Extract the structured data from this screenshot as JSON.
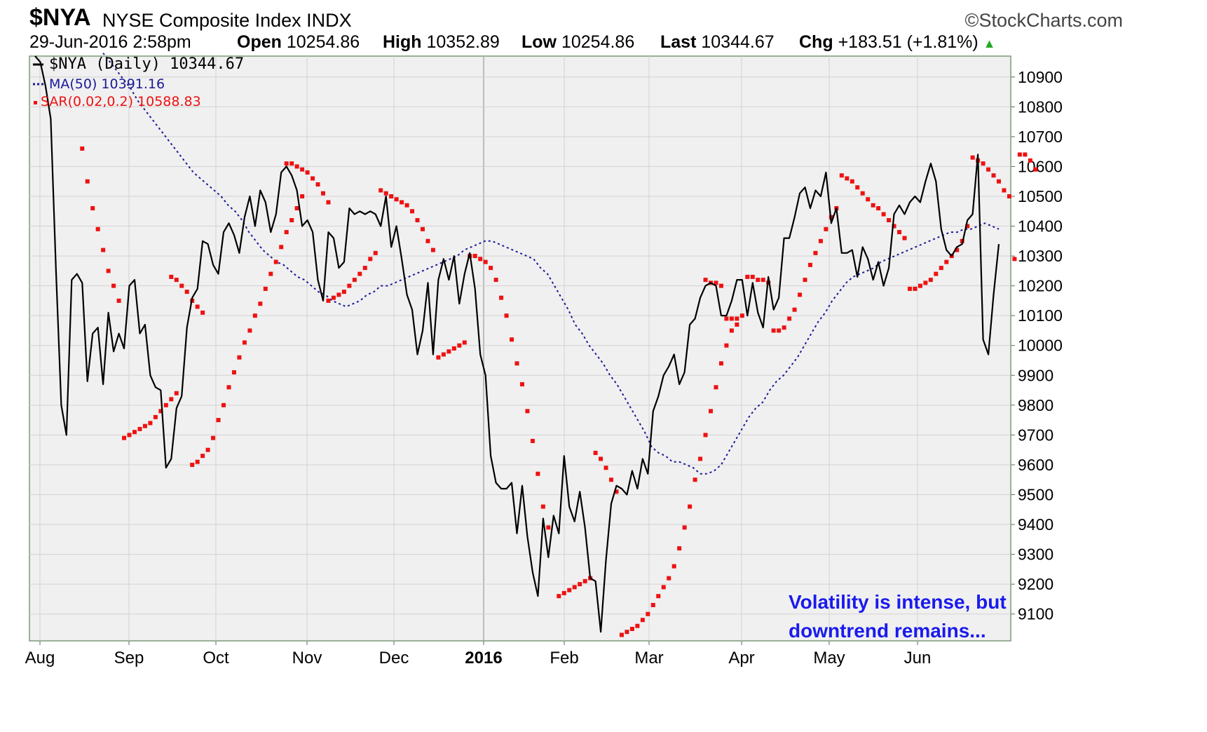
{
  "header": {
    "symbol": "$NYA",
    "name": "NYSE Composite Index",
    "exchange": "INDX",
    "copyright": "©StockCharts.com",
    "datetime": "29-Jun-2016 2:58pm",
    "open_label": "Open",
    "open_value": "10254.86",
    "high_label": "High",
    "high_value": "10352.89",
    "low_label": "Low",
    "low_value": "10254.86",
    "last_label": "Last",
    "last_value": "10344.67",
    "chg_label": "Chg",
    "chg_value": "+183.51 (+1.81%)",
    "chg_arrow": "▲"
  },
  "legend": {
    "price": {
      "label": "$NYA (Daily) 10344.67",
      "color": "#000000"
    },
    "ma": {
      "label": "MA(50) 10391.16",
      "color": "#1a1a99"
    },
    "sar": {
      "label": "SAR(0.02,0.2) 10588.83",
      "color": "#ee1111"
    }
  },
  "annotation": {
    "line1": "Volatility is intense, but",
    "line2": "downtrend remains...",
    "color": "#1a1aee"
  },
  "chart_data": {
    "type": "line",
    "title": "$NYA NYSE Composite Index INDX",
    "ylim": [
      9010,
      10970
    ],
    "yticks": [
      9100,
      9200,
      9300,
      9400,
      9500,
      9600,
      9700,
      9800,
      9900,
      10000,
      10100,
      10200,
      10300,
      10400,
      10500,
      10600,
      10700,
      10800,
      10900
    ],
    "xticks": [
      {
        "label": "Aug",
        "bold": false
      },
      {
        "label": "Sep",
        "bold": false
      },
      {
        "label": "Oct",
        "bold": false
      },
      {
        "label": "Nov",
        "bold": false
      },
      {
        "label": "Dec",
        "bold": false
      },
      {
        "label": "2016",
        "bold": true
      },
      {
        "label": "Feb",
        "bold": false
      },
      {
        "label": "Mar",
        "bold": false
      },
      {
        "label": "Apr",
        "bold": false
      },
      {
        "label": "May",
        "bold": false
      },
      {
        "label": "Jun",
        "bold": false
      }
    ],
    "grid": true,
    "legend_position": "top-left",
    "series": [
      {
        "name": "$NYA (Daily)",
        "style": "solid",
        "color": "#000000",
        "values": [
          10980,
          10950,
          10870,
          10760,
          10250,
          9800,
          9700,
          10220,
          10240,
          10210,
          9880,
          10040,
          10060,
          9870,
          10110,
          9980,
          10040,
          9990,
          10200,
          10220,
          10040,
          10070,
          9900,
          9860,
          9850,
          9590,
          9620,
          9790,
          9830,
          10060,
          10160,
          10190,
          10350,
          10340,
          10270,
          10240,
          10380,
          10410,
          10370,
          10310,
          10430,
          10500,
          10400,
          10520,
          10480,
          10380,
          10440,
          10580,
          10600,
          10570,
          10520,
          10400,
          10420,
          10380,
          10220,
          10150,
          10380,
          10360,
          10260,
          10280,
          10460,
          10440,
          10450,
          10440,
          10450,
          10440,
          10400,
          10500,
          10330,
          10400,
          10290,
          10170,
          10120,
          9970,
          10050,
          10210,
          9970,
          10220,
          10290,
          10220,
          10300,
          10140,
          10240,
          10310,
          10190,
          9970,
          9900,
          9630,
          9540,
          9520,
          9520,
          9540,
          9370,
          9530,
          9360,
          9240,
          9160,
          9420,
          9290,
          9430,
          9370,
          9630,
          9460,
          9410,
          9510,
          9390,
          9220,
          9210,
          9040,
          9280,
          9470,
          9530,
          9520,
          9500,
          9580,
          9520,
          9620,
          9570,
          9780,
          9830,
          9900,
          9930,
          9970,
          9870,
          9910,
          10070,
          10090,
          10160,
          10200,
          10210,
          10200,
          10100,
          10100,
          10150,
          10220,
          10220,
          10100,
          10210,
          10110,
          10060,
          10230,
          10120,
          10160,
          10360,
          10360,
          10430,
          10510,
          10530,
          10460,
          10520,
          10500,
          10580,
          10410,
          10460,
          10310,
          10310,
          10320,
          10230,
          10330,
          10290,
          10220,
          10280,
          10200,
          10260,
          10440,
          10470,
          10440,
          10480,
          10500,
          10480,
          10550,
          10610,
          10550,
          10390,
          10320,
          10300,
          10330,
          10340,
          10420,
          10440,
          10640,
          10020,
          9970,
          10170,
          10340
        ]
      },
      {
        "name": "MA(50)",
        "style": "dotted",
        "color": "#1a1a99",
        "values": [
          10980,
          10950,
          10920,
          10890,
          10860,
          10820,
          10790,
          10760,
          10730,
          10700,
          10670,
          10640,
          10610,
          10580,
          10560,
          10540,
          10520,
          10500,
          10470,
          10450,
          10420,
          10380,
          10350,
          10320,
          10300,
          10280,
          10270,
          10250,
          10230,
          10220,
          10200,
          10180,
          10170,
          10150,
          10140,
          10130,
          10140,
          10150,
          10170,
          10180,
          10200,
          10200,
          10210,
          10220,
          10230,
          10240,
          10250,
          10260,
          10270,
          10280,
          10290,
          10300,
          10320,
          10330,
          10340,
          10350,
          10350,
          10340,
          10330,
          10320,
          10310,
          10300,
          10290,
          10260,
          10240,
          10200,
          10160,
          10120,
          10070,
          10040,
          10000,
          9970,
          9940,
          9900,
          9870,
          9830,
          9790,
          9750,
          9710,
          9660,
          9640,
          9630,
          9610,
          9610,
          9600,
          9590,
          9570,
          9570,
          9580,
          9600,
          9640,
          9680,
          9720,
          9760,
          9790,
          9810,
          9850,
          9880,
          9900,
          9930,
          9960,
          10000,
          10040,
          10080,
          10110,
          10150,
          10180,
          10210,
          10230,
          10240,
          10250,
          10260,
          10280,
          10290,
          10300,
          10310,
          10320,
          10330,
          10340,
          10350,
          10360,
          10370,
          10380,
          10380,
          10390,
          10390,
          10400,
          10410,
          10400,
          10390
        ],
        "x_offset_days": 13
      },
      {
        "name": "SAR(0.02,0.2)",
        "style": "markers",
        "color": "#ee1111",
        "segments": [
          {
            "start": 9,
            "values": [
              10660,
              10550,
              10460,
              10390,
              10320,
              10250,
              10200,
              10150
            ]
          },
          {
            "start": 17,
            "values": [
              9690,
              9700,
              9710,
              9720,
              9730,
              9740,
              9760,
              9780,
              9800,
              9820,
              9840
            ]
          },
          {
            "start": 26,
            "values": [
              10230,
              10220,
              10200,
              10180,
              10150,
              10130,
              10110
            ]
          },
          {
            "start": 30,
            "values": [
              9600,
              9610,
              9630,
              9650,
              9690,
              9750,
              9800,
              9860,
              9910,
              9960,
              10010,
              10050,
              10100,
              10140,
              10190,
              10240,
              10280,
              10330,
              10380,
              10420,
              10460,
              10500
            ]
          },
          {
            "start": 48,
            "values": [
              10610,
              10610,
              10600,
              10590,
              10580,
              10560,
              10540,
              10510,
              10480
            ]
          },
          {
            "start": 56,
            "values": [
              10150,
              10160,
              10170,
              10180,
              10200,
              10220,
              10240,
              10260,
              10290,
              10310
            ]
          },
          {
            "start": 66,
            "values": [
              10520,
              10510,
              10500,
              10490,
              10480,
              10470,
              10450,
              10420,
              10390,
              10350,
              10320
            ]
          },
          {
            "start": 77,
            "values": [
              9960,
              9970,
              9980,
              9990,
              10000,
              10010
            ]
          },
          {
            "start": 83,
            "values": [
              10300,
              10300,
              10290,
              10280,
              10260,
              10220,
              10160,
              10100,
              10020,
              9940,
              9870,
              9780,
              9680,
              9570,
              9460,
              9390
            ]
          },
          {
            "start": 100,
            "values": [
              9160,
              9170,
              9180,
              9190,
              9200,
              9210,
              9220
            ]
          },
          {
            "start": 107,
            "values": [
              9640,
              9620,
              9590,
              9550,
              9510
            ]
          },
          {
            "start": 112,
            "values": [
              9030,
              9040,
              9050,
              9060,
              9080,
              9100,
              9130,
              9160,
              9190,
              9220,
              9260,
              9320,
              9390,
              9460,
              9550,
              9620,
              9700,
              9780,
              9860,
              9940,
              10000,
              10050,
              10070
            ]
          },
          {
            "start": 128,
            "values": [
              10220,
              10210,
              10210,
              10200
            ]
          },
          {
            "start": 132,
            "values": [
              10090,
              10090,
              10090,
              10100
            ]
          },
          {
            "start": 136,
            "values": [
              10230,
              10230,
              10220,
              10220,
              10210
            ]
          },
          {
            "start": 141,
            "values": [
              10050,
              10050,
              10060,
              10090,
              10120,
              10170,
              10220,
              10270,
              10310,
              10350,
              10390,
              10430,
              10460
            ]
          },
          {
            "start": 154,
            "values": [
              10570,
              10560,
              10550,
              10530,
              10510,
              10490,
              10470,
              10460,
              10440,
              10420,
              10400,
              10380,
              10360
            ]
          },
          {
            "start": 167,
            "values": [
              10190,
              10190,
              10200,
              10210,
              10220,
              10240,
              10260,
              10280,
              10300,
              10320,
              10350,
              10400
            ]
          },
          {
            "start": 179,
            "values": [
              10630,
              10620,
              10610,
              10590,
              10570,
              10550,
              10520,
              10500
            ]
          },
          {
            "start": 187,
            "values": [
              10290
            ]
          },
          {
            "start": 188,
            "values": [
              10640,
              10640,
              10620,
              10590
            ]
          }
        ]
      }
    ]
  }
}
